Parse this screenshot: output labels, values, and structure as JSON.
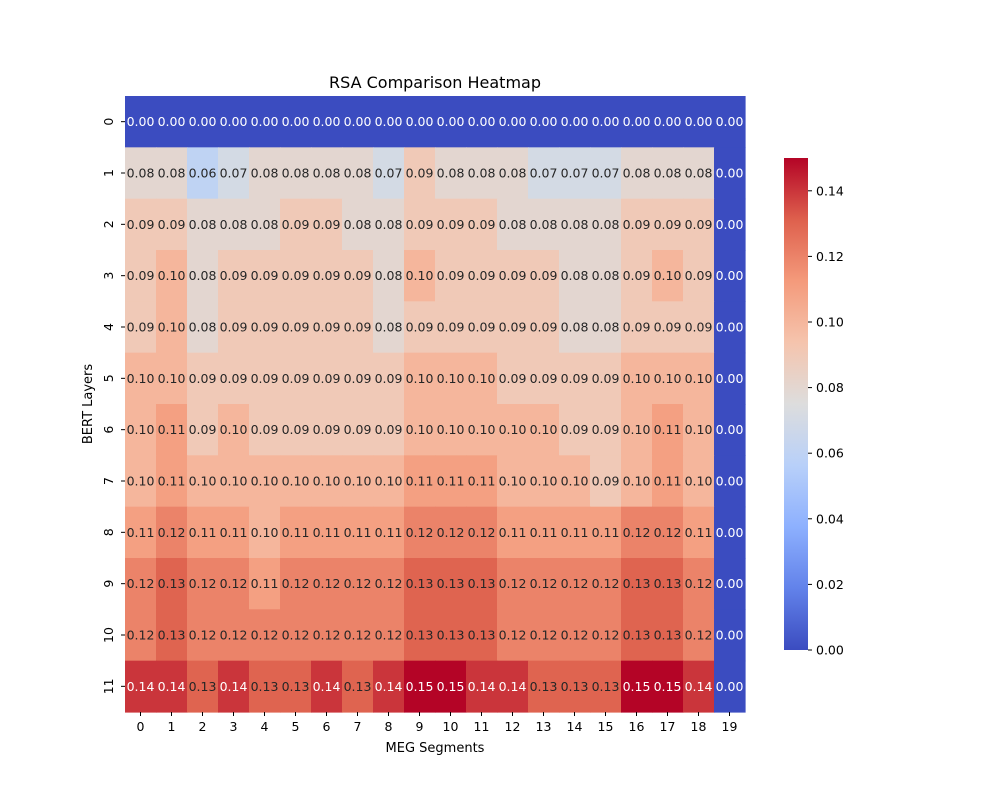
{
  "chart_data": {
    "type": "heatmap",
    "title": "RSA Comparison Heatmap",
    "xlabel": "MEG Segments",
    "ylabel": "BERT Layers",
    "x_categories": [
      "0",
      "1",
      "2",
      "3",
      "4",
      "5",
      "6",
      "7",
      "8",
      "9",
      "10",
      "11",
      "12",
      "13",
      "14",
      "15",
      "16",
      "17",
      "18",
      "19"
    ],
    "y_categories": [
      "0",
      "1",
      "2",
      "3",
      "4",
      "5",
      "6",
      "7",
      "8",
      "9",
      "10",
      "11"
    ],
    "values": [
      [
        0.0,
        0.0,
        0.0,
        0.0,
        0.0,
        0.0,
        0.0,
        0.0,
        0.0,
        0.0,
        0.0,
        0.0,
        0.0,
        0.0,
        0.0,
        0.0,
        0.0,
        0.0,
        0.0,
        0.0
      ],
      [
        0.08,
        0.08,
        0.06,
        0.07,
        0.08,
        0.08,
        0.08,
        0.08,
        0.07,
        0.09,
        0.08,
        0.08,
        0.08,
        0.07,
        0.07,
        0.07,
        0.08,
        0.08,
        0.08,
        0.0
      ],
      [
        0.09,
        0.09,
        0.08,
        0.08,
        0.08,
        0.09,
        0.09,
        0.08,
        0.08,
        0.09,
        0.09,
        0.09,
        0.08,
        0.08,
        0.08,
        0.08,
        0.09,
        0.09,
        0.09,
        0.0
      ],
      [
        0.09,
        0.1,
        0.08,
        0.09,
        0.09,
        0.09,
        0.09,
        0.09,
        0.08,
        0.1,
        0.09,
        0.09,
        0.09,
        0.09,
        0.08,
        0.08,
        0.09,
        0.1,
        0.09,
        0.0
      ],
      [
        0.09,
        0.1,
        0.08,
        0.09,
        0.09,
        0.09,
        0.09,
        0.09,
        0.08,
        0.09,
        0.09,
        0.09,
        0.09,
        0.09,
        0.08,
        0.08,
        0.09,
        0.09,
        0.09,
        0.0
      ],
      [
        0.1,
        0.1,
        0.09,
        0.09,
        0.09,
        0.09,
        0.09,
        0.09,
        0.09,
        0.1,
        0.1,
        0.1,
        0.09,
        0.09,
        0.09,
        0.09,
        0.1,
        0.1,
        0.1,
        0.0
      ],
      [
        0.1,
        0.11,
        0.09,
        0.1,
        0.09,
        0.09,
        0.09,
        0.09,
        0.09,
        0.1,
        0.1,
        0.1,
        0.1,
        0.1,
        0.09,
        0.09,
        0.1,
        0.11,
        0.1,
        0.0
      ],
      [
        0.1,
        0.11,
        0.1,
        0.1,
        0.1,
        0.1,
        0.1,
        0.1,
        0.1,
        0.11,
        0.11,
        0.11,
        0.1,
        0.1,
        0.1,
        0.09,
        0.1,
        0.11,
        0.1,
        0.0
      ],
      [
        0.11,
        0.12,
        0.11,
        0.11,
        0.1,
        0.11,
        0.11,
        0.11,
        0.11,
        0.12,
        0.12,
        0.12,
        0.11,
        0.11,
        0.11,
        0.11,
        0.12,
        0.12,
        0.11,
        0.0
      ],
      [
        0.12,
        0.13,
        0.12,
        0.12,
        0.11,
        0.12,
        0.12,
        0.12,
        0.12,
        0.13,
        0.13,
        0.13,
        0.12,
        0.12,
        0.12,
        0.12,
        0.13,
        0.13,
        0.12,
        0.0
      ],
      [
        0.12,
        0.13,
        0.12,
        0.12,
        0.12,
        0.12,
        0.12,
        0.12,
        0.12,
        0.13,
        0.13,
        0.13,
        0.12,
        0.12,
        0.12,
        0.12,
        0.13,
        0.13,
        0.12,
        0.0
      ],
      [
        0.14,
        0.14,
        0.13,
        0.14,
        0.13,
        0.13,
        0.14,
        0.13,
        0.14,
        0.15,
        0.15,
        0.14,
        0.14,
        0.13,
        0.13,
        0.13,
        0.15,
        0.15,
        0.14,
        0.0
      ]
    ],
    "colorbar": {
      "colormap": "coolwarm",
      "range": [
        0.0,
        0.15
      ],
      "ticks": [
        "0.00",
        "0.02",
        "0.04",
        "0.06",
        "0.08",
        "0.10",
        "0.12",
        "0.14"
      ]
    },
    "annotations": "cell values shown with 2 decimals",
    "grid": false
  }
}
